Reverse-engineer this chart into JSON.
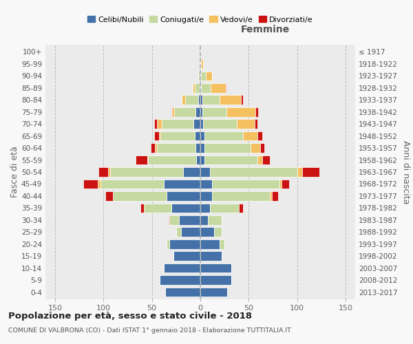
{
  "age_groups": [
    "0-4",
    "5-9",
    "10-14",
    "15-19",
    "20-24",
    "25-29",
    "30-34",
    "35-39",
    "40-44",
    "45-49",
    "50-54",
    "55-59",
    "60-64",
    "65-69",
    "70-74",
    "75-79",
    "80-84",
    "85-89",
    "90-94",
    "95-99",
    "100+"
  ],
  "birth_years": [
    "2013-2017",
    "2008-2012",
    "2003-2007",
    "1998-2002",
    "1993-1997",
    "1988-1992",
    "1983-1987",
    "1978-1982",
    "1973-1977",
    "1968-1972",
    "1963-1967",
    "1958-1962",
    "1953-1957",
    "1948-1952",
    "1943-1947",
    "1938-1942",
    "1933-1937",
    "1928-1932",
    "1923-1927",
    "1918-1922",
    "≤ 1917"
  ],
  "male": {
    "celibi": [
      36,
      42,
      38,
      28,
      32,
      20,
      22,
      30,
      35,
      38,
      18,
      4,
      5,
      6,
      7,
      5,
      2,
      1,
      1,
      0,
      0
    ],
    "coniugati": [
      0,
      0,
      0,
      0,
      3,
      5,
      10,
      28,
      55,
      65,
      75,
      50,
      40,
      35,
      33,
      22,
      14,
      5,
      1,
      0,
      0
    ],
    "vedovi": [
      0,
      0,
      0,
      0,
      0,
      0,
      0,
      0,
      0,
      3,
      2,
      1,
      2,
      2,
      5,
      2,
      3,
      2,
      0,
      0,
      0
    ],
    "divorziati": [
      0,
      0,
      0,
      0,
      0,
      0,
      1,
      4,
      8,
      15,
      10,
      12,
      4,
      5,
      3,
      1,
      0,
      0,
      0,
      0,
      0
    ]
  },
  "female": {
    "nubili": [
      28,
      32,
      32,
      22,
      20,
      14,
      8,
      10,
      12,
      12,
      10,
      4,
      4,
      4,
      3,
      2,
      2,
      1,
      1,
      0,
      0
    ],
    "coniugate": [
      0,
      0,
      0,
      0,
      5,
      8,
      14,
      30,
      60,
      70,
      90,
      55,
      48,
      40,
      35,
      25,
      18,
      10,
      5,
      1,
      0
    ],
    "vedove": [
      0,
      0,
      0,
      0,
      0,
      0,
      0,
      0,
      2,
      2,
      5,
      5,
      10,
      15,
      18,
      30,
      22,
      15,
      6,
      2,
      0
    ],
    "divorziate": [
      0,
      0,
      0,
      0,
      0,
      0,
      0,
      4,
      6,
      8,
      18,
      8,
      4,
      5,
      3,
      3,
      2,
      1,
      0,
      0,
      0
    ]
  },
  "colors": {
    "celibi": "#4472a8",
    "coniugati": "#c5d9a0",
    "vedovi": "#f5c060",
    "divorziati": "#cc1111"
  },
  "xlim": 160,
  "title": "Popolazione per età, sesso e stato civile - 2018",
  "subtitle": "COMUNE DI VALBRONA (CO) - Dati ISTAT 1° gennaio 2018 - Elaborazione TUTTITALIA.IT",
  "xlabel_right": "Femmine",
  "ylabel_left": "Fasce di età",
  "ylabel_right": "Anni di nascita",
  "legend_labels": [
    "Celibi/Nubili",
    "Coniugati/e",
    "Vedovi/e",
    "Divorziati/e"
  ],
  "bg_color": "#f8f8f8",
  "plot_bg": "#ebebeb"
}
